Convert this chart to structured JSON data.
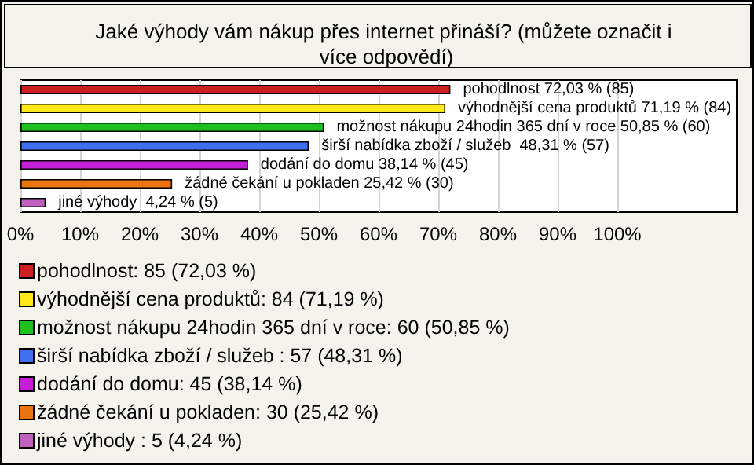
{
  "chart_data": {
    "type": "bar",
    "orientation": "horizontal",
    "stacked": true,
    "title": "Jaké výhody vám nákup přes internet přináší? (můžete označit i více odpovědí)",
    "categories": [
      null,
      null,
      null,
      null,
      null,
      null,
      null
    ],
    "series": [
      {
        "name": "pohodlnost: 85 (72,03 %)",
        "color": "#cc1f1f",
        "values": [
          72.03,
          null,
          null,
          null,
          null,
          null,
          null
        ],
        "value_labels": [
          "pohodlnost 72,03 % (85)",
          null,
          null,
          null,
          null,
          null,
          null
        ]
      },
      {
        "name": "výhodnější cena produktů: 84 (71,19 %)",
        "color": "#ffe81a",
        "values": [
          null,
          71.19,
          null,
          null,
          null,
          null,
          null
        ],
        "value_labels": [
          null,
          "výhodnější cena produktů 71,19 % (84)",
          null,
          null,
          null,
          null,
          null
        ]
      },
      {
        "name": "možnost nákupu 24hodin 365 dní v roce: 60 (50,85 %)",
        "color": "#1fbf1f",
        "values": [
          null,
          null,
          50.85,
          null,
          null,
          null,
          null
        ],
        "value_labels": [
          null,
          null,
          "možnost nákupu 24hodin 365 dní v roce 50,85 % (60)",
          null,
          null,
          null,
          null
        ]
      },
      {
        "name": "širší nabídka zboží / služeb : 57 (48,31 %)",
        "color": "#3f6fef",
        "values": [
          null,
          null,
          null,
          48.31,
          null,
          null,
          null
        ],
        "value_labels": [
          null,
          null,
          null,
          "širší nabídka zboží / služeb  48,31 % (57)",
          null,
          null,
          null
        ]
      },
      {
        "name": "dodání do domu: 45 (38,14 %)",
        "color": "#c41fd6",
        "values": [
          null,
          null,
          null,
          null,
          38.14,
          null,
          null
        ],
        "value_labels": [
          null,
          null,
          null,
          null,
          "dodání do domu 38,14 % (45)",
          null,
          null
        ]
      },
      {
        "name": "žádné čekání u pokladen: 30 (25,42 %)",
        "color": "#e8730f",
        "values": [
          null,
          null,
          null,
          null,
          null,
          25.42,
          null
        ],
        "value_labels": [
          null,
          null,
          null,
          null,
          null,
          "žádné čekání u pokladen 25,42 % (30)",
          null
        ]
      },
      {
        "name": "jiné výhody : 5 (4,24 %)",
        "color": "#c05fc0",
        "values": [
          null,
          null,
          null,
          null,
          null,
          null,
          4.24
        ],
        "value_labels": [
          null,
          null,
          null,
          null,
          null,
          null,
          "jiné výhody  4,24 % (5)"
        ]
      }
    ],
    "xlim": [
      0,
      120
    ],
    "xticks": [
      {
        "value": 0,
        "label": "0%"
      },
      {
        "value": 10,
        "label": "10%"
      },
      {
        "value": 20,
        "label": "20%"
      },
      {
        "value": 30,
        "label": "30%"
      },
      {
        "value": 40,
        "label": "40%"
      },
      {
        "value": 50,
        "label": "50%"
      },
      {
        "value": 60,
        "label": "60%"
      },
      {
        "value": 70,
        "label": "70%"
      },
      {
        "value": 80,
        "label": "80%"
      },
      {
        "value": 90,
        "label": "90%"
      },
      {
        "value": 100,
        "label": "100%"
      }
    ],
    "grid": "x",
    "legend": "bottom left",
    "tick_labels": "x"
  }
}
